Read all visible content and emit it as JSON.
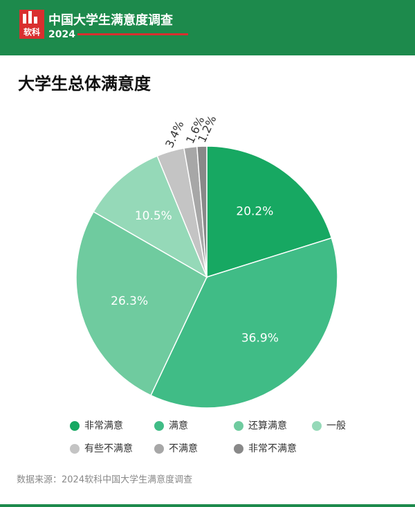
{
  "header": {
    "logo": "软科",
    "title": "中国大学生满意度调查",
    "year": "2024"
  },
  "chart_data": {
    "type": "pie",
    "title": "大学生总体满意度",
    "categories": [
      "非常满意",
      "满意",
      "还算满意",
      "一般",
      "有些不满意",
      "不满意",
      "非常不满意"
    ],
    "values": [
      20.2,
      36.9,
      26.3,
      10.5,
      3.4,
      1.6,
      1.2
    ],
    "value_labels": [
      "20.2%",
      "36.9%",
      "26.3%",
      "10.5%",
      "3.4%",
      "1.6%",
      "1.2%"
    ],
    "colors": [
      "#17a862",
      "#40bc86",
      "#6fcb9f",
      "#95d9b8",
      "#c4c4c4",
      "#a7a7a7",
      "#898989"
    ]
  },
  "source": "数据来源：2024软科中国大学生满意度调查"
}
